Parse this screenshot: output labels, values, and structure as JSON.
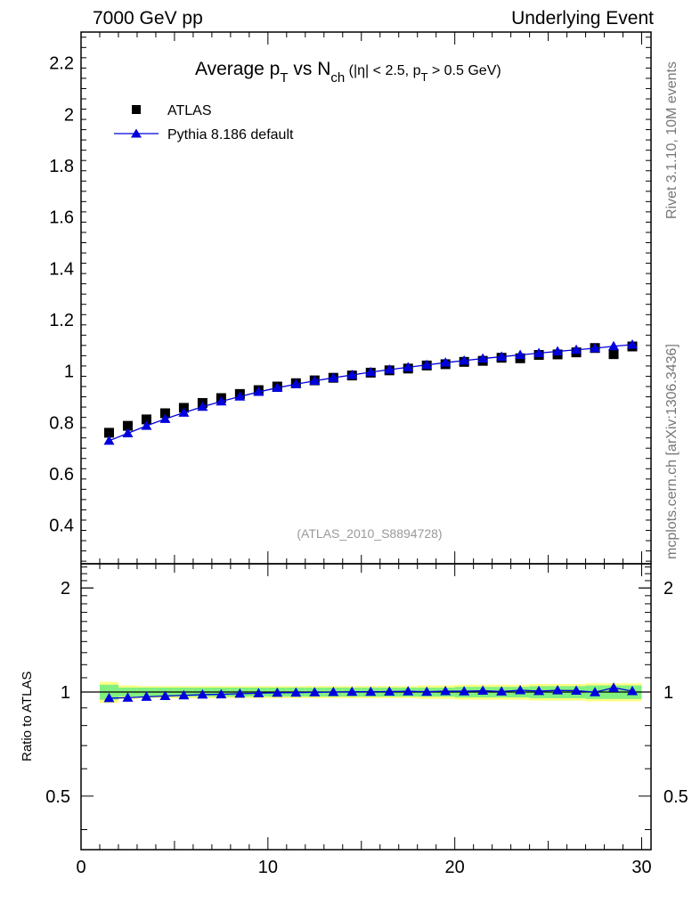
{
  "header": {
    "left": "7000 GeV pp",
    "right": "Underlying Event"
  },
  "side_labels": {
    "rivet": "Rivet 3.1.10,  10M events",
    "mcplots": "mcplots.cern.ch [arXiv:1306.3436]"
  },
  "title": {
    "part1": "Average p",
    "sub1": "T",
    "part2": " vs N",
    "sub2": "ch",
    "part3": " (|η| < 2.5, p",
    "sub3": "T",
    "part4": " > 0.5 GeV)"
  },
  "legend": {
    "data_label": "ATLAS",
    "mc_label": "Pythia 8.186 default"
  },
  "analysis_id": "(ATLAS_2010_S8894728)",
  "colors": {
    "data": "#000000",
    "mc": "#0000dd",
    "band_inner": "#80f080",
    "band_outer": "#ffff80"
  },
  "chart_data": [
    {
      "type": "scatter",
      "title": "Average pT vs Nch (|η| < 2.5, pT > 0.5 GeV)",
      "xlabel": "",
      "ylabel": "",
      "xlim": [
        0,
        30.5
      ],
      "ylim": [
        0.25,
        2.32
      ],
      "yticks": [
        0.4,
        0.6,
        0.8,
        1,
        1.2,
        1.4,
        1.6,
        1.8,
        2,
        2.2
      ],
      "ytick_labels": [
        "0.4",
        "0.6",
        "0.8",
        "1",
        "1.2",
        "1.4",
        "1.6",
        "1.8",
        "2",
        "2.2"
      ],
      "x": [
        1.5,
        2.5,
        3.5,
        4.5,
        5.5,
        6.5,
        7.5,
        8.5,
        9.5,
        10.5,
        11.5,
        12.5,
        13.5,
        14.5,
        15.5,
        16.5,
        17.5,
        18.5,
        19.5,
        20.5,
        21.5,
        22.5,
        23.5,
        24.5,
        25.5,
        26.5,
        27.5,
        28.5,
        29.5
      ],
      "series": [
        {
          "name": "ATLAS",
          "marker": "square",
          "values": [
            0.76,
            0.787,
            0.812,
            0.836,
            0.857,
            0.876,
            0.895,
            0.911,
            0.926,
            0.94,
            0.953,
            0.964,
            0.974,
            0.983,
            0.994,
            1.003,
            1.01,
            1.022,
            1.027,
            1.036,
            1.04,
            1.052,
            1.05,
            1.063,
            1.065,
            1.073,
            1.09,
            1.066,
            1.096
          ]
        },
        {
          "name": "Pythia 8.186 default",
          "marker": "triangle",
          "values": [
            0.729,
            0.758,
            0.787,
            0.814,
            0.838,
            0.861,
            0.882,
            0.901,
            0.919,
            0.935,
            0.949,
            0.962,
            0.974,
            0.985,
            0.996,
            1.006,
            1.015,
            1.024,
            1.033,
            1.041,
            1.049,
            1.056,
            1.063,
            1.07,
            1.077,
            1.083,
            1.089,
            1.097,
            1.103
          ]
        }
      ]
    },
    {
      "type": "scatter",
      "title": "",
      "xlabel": "",
      "ylabel": "Ratio to ATLAS",
      "xlim": [
        0,
        30.5
      ],
      "ylim": [
        0.35,
        2.35
      ],
      "yscale": "log",
      "yticks": [
        0.5,
        1,
        2
      ],
      "ytick_labels": [
        "0.5",
        "1",
        "2"
      ],
      "xticks": [
        0,
        10,
        20,
        30
      ],
      "xtick_labels": [
        "0",
        "10",
        "20",
        "30"
      ],
      "x": [
        1.5,
        2.5,
        3.5,
        4.5,
        5.5,
        6.5,
        7.5,
        8.5,
        9.5,
        10.5,
        11.5,
        12.5,
        13.5,
        14.5,
        15.5,
        16.5,
        17.5,
        18.5,
        19.5,
        20.5,
        21.5,
        22.5,
        23.5,
        24.5,
        25.5,
        26.5,
        27.5,
        28.5,
        29.5
      ],
      "band_inner": [
        0.05,
        0.03,
        0.03,
        0.03,
        0.03,
        0.03,
        0.03,
        0.03,
        0.03,
        0.03,
        0.03,
        0.03,
        0.03,
        0.03,
        0.03,
        0.03,
        0.03,
        0.03,
        0.03,
        0.035,
        0.035,
        0.035,
        0.035,
        0.04,
        0.04,
        0.04,
        0.045,
        0.045,
        0.045
      ],
      "band_outer": [
        0.07,
        0.045,
        0.04,
        0.04,
        0.04,
        0.04,
        0.04,
        0.04,
        0.04,
        0.04,
        0.04,
        0.04,
        0.04,
        0.04,
        0.04,
        0.04,
        0.04,
        0.045,
        0.045,
        0.05,
        0.05,
        0.05,
        0.05,
        0.055,
        0.055,
        0.055,
        0.06,
        0.06,
        0.06
      ],
      "series": [
        {
          "name": "Pythia 8.186 default",
          "marker": "triangle",
          "values": [
            0.96,
            0.963,
            0.969,
            0.974,
            0.978,
            0.983,
            0.985,
            0.989,
            0.992,
            0.995,
            0.996,
            0.998,
            1.0,
            1.002,
            1.002,
            1.003,
            1.005,
            1.002,
            1.006,
            1.005,
            1.009,
            1.004,
            1.012,
            1.007,
            1.011,
            1.009,
            0.999,
            1.029,
            1.006
          ]
        }
      ]
    }
  ]
}
